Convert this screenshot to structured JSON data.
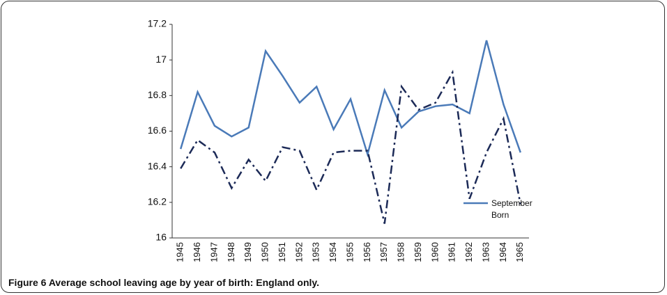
{
  "chart_data": {
    "type": "line",
    "caption": "Figure 6 Average school leaving age by year of birth: England only.",
    "categories": [
      "1945",
      "1946",
      "1947",
      "1948",
      "1949",
      "1950",
      "1951",
      "1952",
      "1953",
      "1954",
      "1955",
      "1956",
      "1957",
      "1958",
      "1959",
      "1960",
      "1961",
      "1962",
      "1963",
      "1964",
      "1965"
    ],
    "series": [
      {
        "name": "September Born",
        "color": "#4a7ab8",
        "dash": "solid",
        "values": [
          16.5,
          16.82,
          16.63,
          16.57,
          16.62,
          17.05,
          16.91,
          16.76,
          16.85,
          16.61,
          16.78,
          16.47,
          16.83,
          16.62,
          16.71,
          16.74,
          16.75,
          16.7,
          17.11,
          16.75,
          16.48
        ]
      },
      {
        "color": "#1c2a57",
        "dash": "dash-dot",
        "values": [
          16.39,
          16.55,
          16.48,
          16.28,
          16.44,
          16.32,
          16.51,
          16.49,
          16.27,
          16.48,
          16.49,
          16.49,
          16.08,
          16.85,
          16.72,
          16.76,
          16.93,
          16.22,
          16.48,
          16.67,
          16.19
        ]
      }
    ],
    "ylim": [
      16,
      17.2
    ],
    "yticks": [
      16,
      16.2,
      16.4,
      16.6,
      16.8,
      17,
      17.2
    ],
    "grid": false
  }
}
